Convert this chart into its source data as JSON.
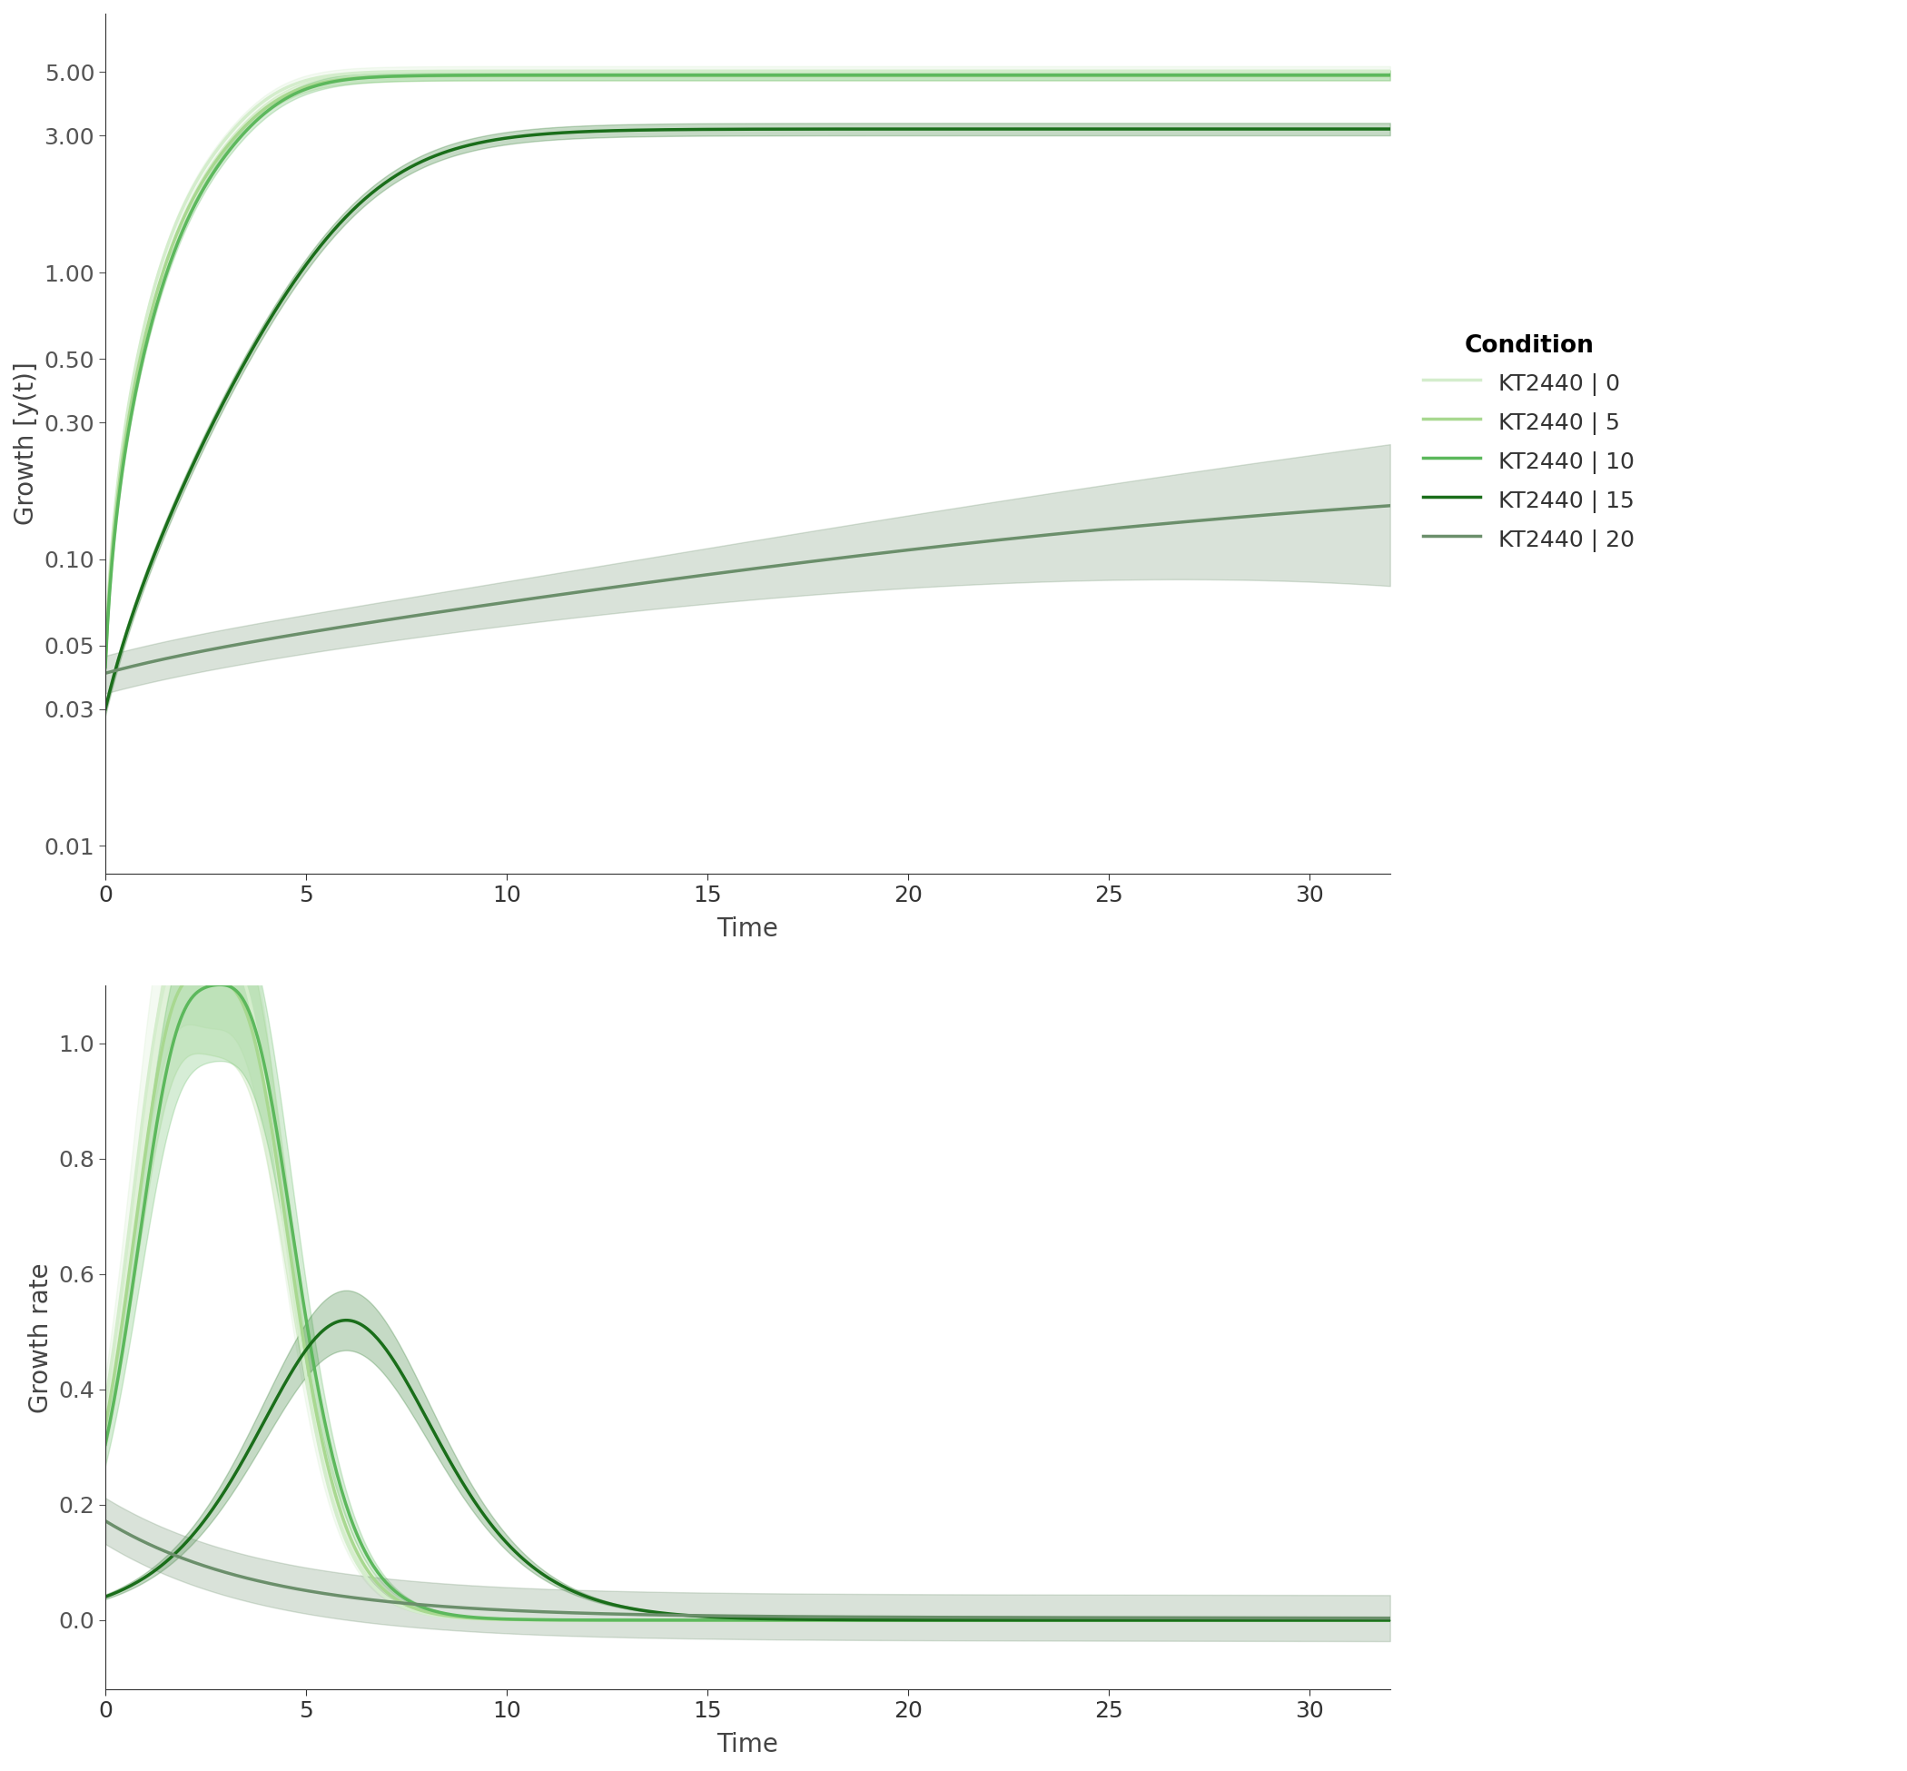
{
  "conditions": [
    "KT2440 | 0",
    "KT2440 | 5",
    "KT2440 | 10",
    "KT2440 | 15",
    "KT2440 | 20"
  ],
  "colors": [
    "#d4edcc",
    "#a8d890",
    "#5cb85c",
    "#1a6e1a",
    "#6b8f6b"
  ],
  "legend_title": "Condition",
  "top_ylabel": "Growth [y(t)]",
  "bottom_ylabel": "Growth rate",
  "xlabel": "Time",
  "background_color": "#ffffff",
  "label_fontsize": 20,
  "tick_fontsize": 18,
  "legend_fontsize": 18,
  "top_yticks": [
    0.01,
    0.03,
    0.05,
    0.1,
    0.3,
    0.5,
    1.0,
    3.0,
    5.0
  ],
  "top_ytick_labels": [
    "0.01",
    "0.03",
    "0.05",
    "0.10",
    "0.30",
    "0.50",
    "1.00",
    "3.00",
    "5.00"
  ],
  "bottom_yticks": [
    0.0,
    0.2,
    0.4,
    0.6,
    0.8,
    1.0
  ],
  "xticks": [
    0,
    5,
    10,
    15,
    20,
    25,
    30
  ]
}
